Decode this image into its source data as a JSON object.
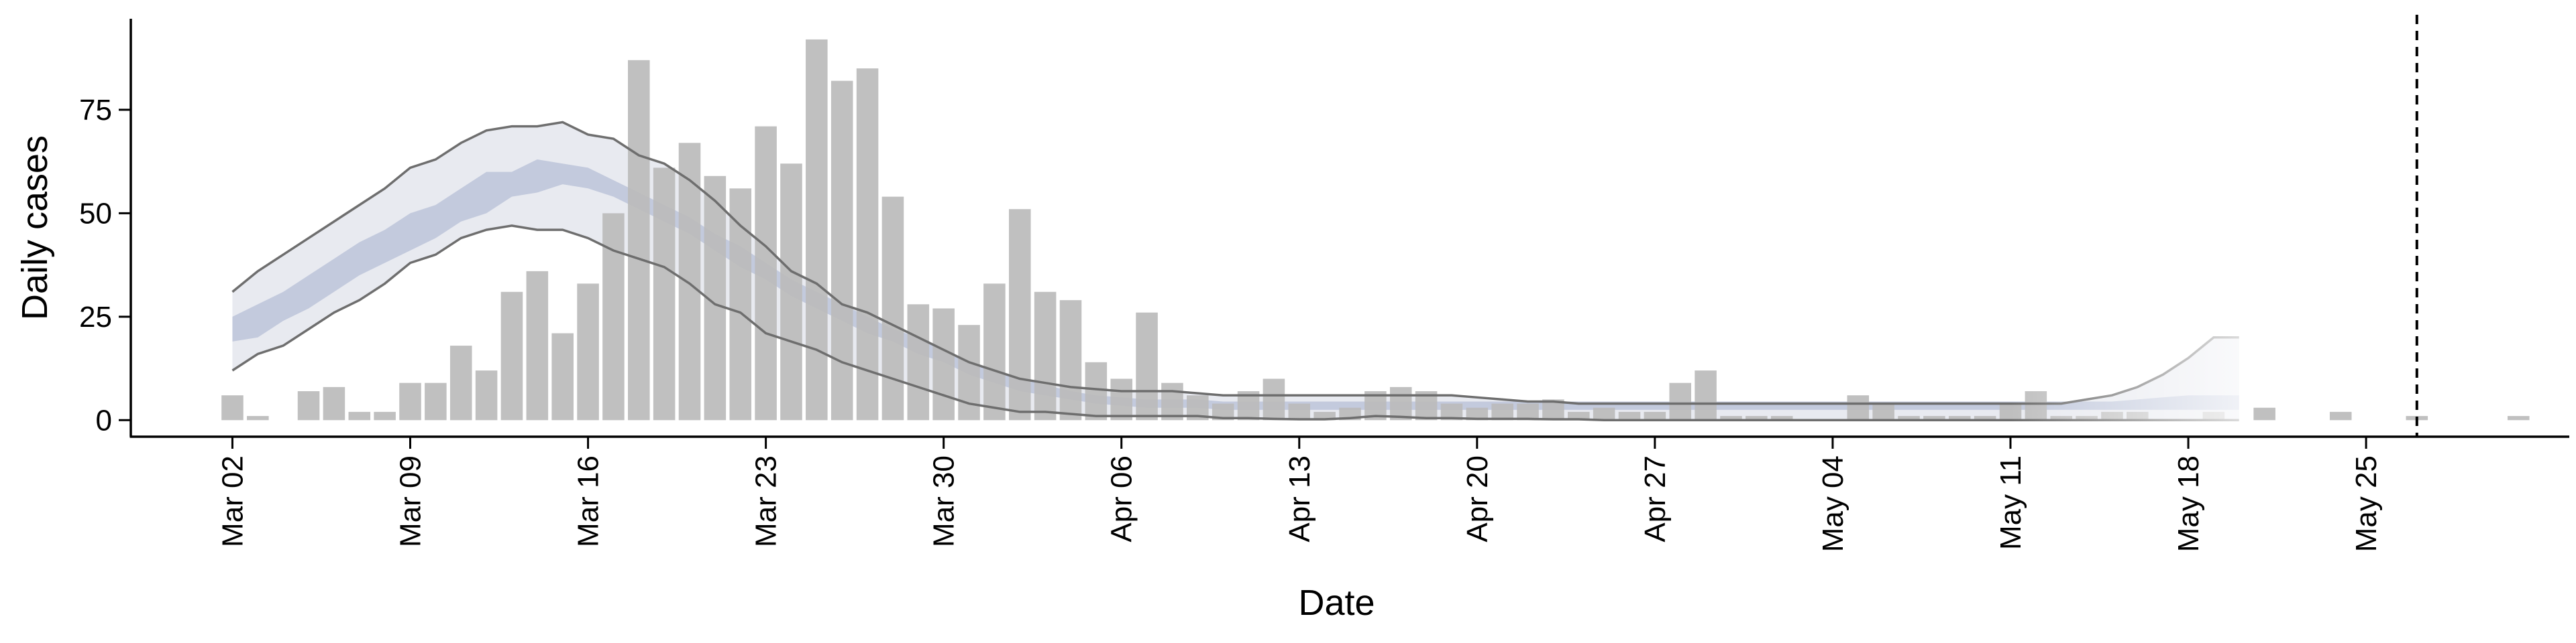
{
  "chart_data": {
    "type": "bar",
    "xlabel": "Date",
    "ylabel": "Daily cases",
    "ylim": [
      -4,
      97
    ],
    "yticks": [
      0,
      25,
      50,
      75
    ],
    "x_range": [
      "2020-02-27",
      "2020-06-02"
    ],
    "xticks": [
      {
        "date": "2020-03-02",
        "label": "Mar 02"
      },
      {
        "date": "2020-03-09",
        "label": "Mar 09"
      },
      {
        "date": "2020-03-16",
        "label": "Mar 16"
      },
      {
        "date": "2020-03-23",
        "label": "Mar 23"
      },
      {
        "date": "2020-03-30",
        "label": "Mar 30"
      },
      {
        "date": "2020-04-06",
        "label": "Apr 06"
      },
      {
        "date": "2020-04-13",
        "label": "Apr 13"
      },
      {
        "date": "2020-04-20",
        "label": "Apr 20"
      },
      {
        "date": "2020-04-27",
        "label": "Apr 27"
      },
      {
        "date": "2020-05-04",
        "label": "May 04"
      },
      {
        "date": "2020-05-11",
        "label": "May 11"
      },
      {
        "date": "2020-05-18",
        "label": "May 18"
      },
      {
        "date": "2020-05-25",
        "label": "May 25"
      }
    ],
    "vline": "2020-05-27",
    "bars": {
      "start_date": "2020-03-02",
      "values": [
        6,
        1,
        0,
        7,
        8,
        2,
        2,
        9,
        9,
        18,
        12,
        31,
        36,
        21,
        33,
        50,
        87,
        61,
        67,
        59,
        56,
        71,
        62,
        92,
        82,
        85,
        54,
        28,
        27,
        23,
        33,
        51,
        31,
        29,
        14,
        10,
        26,
        9,
        6,
        4,
        7,
        10,
        4,
        2,
        3,
        7,
        8,
        7,
        4,
        3,
        4,
        4,
        5,
        2,
        3,
        2,
        2,
        9,
        12,
        1,
        1,
        1,
        0,
        0,
        6,
        4,
        1,
        1,
        1,
        1,
        4,
        7,
        1,
        1,
        2,
        2,
        0,
        0,
        2,
        0,
        3,
        0,
        0,
        2,
        0,
        0,
        1,
        0,
        0,
        0,
        1
      ],
      "color": "#bbbbbb"
    },
    "band": {
      "start_date": "2020-03-02",
      "outer_lower": [
        12,
        16,
        18,
        22,
        26,
        29,
        33,
        38,
        40,
        44,
        46,
        47,
        46,
        46,
        44,
        41,
        39,
        37,
        33,
        28,
        26,
        21,
        19,
        17,
        14,
        12,
        10,
        8,
        6,
        4,
        3,
        2,
        2,
        1.5,
        1,
        1,
        1,
        1,
        1,
        0.5,
        0.5,
        0.3,
        0.2,
        0.2,
        0.5,
        1,
        0.8,
        0.5,
        0.5,
        0.3,
        0.3,
        0.3,
        0.2,
        0.2,
        0,
        0,
        0,
        0,
        0,
        0,
        0,
        0,
        0,
        0,
        0,
        0,
        0,
        0,
        0,
        0,
        0,
        0,
        0,
        0,
        0,
        0,
        0,
        0,
        0,
        0,
        0,
        0,
        0
      ],
      "outer_upper": [
        31,
        36,
        40,
        44,
        48,
        52,
        56,
        61,
        63,
        67,
        70,
        71,
        71,
        72,
        69,
        68,
        64,
        62,
        58,
        53,
        47,
        42,
        36,
        33,
        28,
        26,
        23,
        20,
        17,
        14,
        12,
        10,
        9,
        8,
        7.5,
        7,
        7,
        7,
        6.5,
        6,
        6,
        6,
        6,
        6,
        6,
        6,
        6,
        6,
        6,
        5.5,
        5,
        4.5,
        4.5,
        4,
        4,
        4,
        4,
        4,
        4,
        4,
        4,
        4,
        4,
        4,
        4,
        4,
        4,
        4,
        4,
        4,
        4,
        4,
        4,
        5,
        6,
        8,
        11,
        15,
        20,
        20,
        0,
        0,
        0
      ],
      "inner_lower": [
        19,
        20,
        24,
        27,
        31,
        35,
        38,
        41,
        44,
        48,
        50,
        54,
        55,
        57,
        56,
        54,
        51,
        48,
        45,
        41,
        37,
        34,
        30,
        27,
        24,
        21,
        19,
        16,
        14,
        11,
        9,
        7,
        6,
        5,
        4,
        3.5,
        3,
        3,
        3,
        2.5,
        2.5,
        2.5,
        2.5,
        2.5,
        2.5,
        2.5,
        2.5,
        2.5,
        2.5,
        2.5,
        2.5,
        2.5,
        2.5,
        2.5,
        2.5,
        2.5,
        2.5,
        2.5,
        2.5,
        2.5,
        2.5,
        2.5,
        2.5,
        2.5,
        2.5,
        2.5,
        2.5,
        2.5,
        2.5,
        2.5,
        2.5,
        2.5,
        2.5,
        2.5,
        2.5,
        2.5,
        2.5,
        2.5,
        2.5,
        2.5,
        0,
        0,
        0
      ],
      "inner_upper": [
        25,
        28,
        31,
        35,
        39,
        43,
        46,
        50,
        52,
        56,
        60,
        60,
        63,
        62,
        61,
        58,
        55,
        52,
        49,
        45,
        42,
        38,
        34,
        31,
        28,
        25,
        22,
        20,
        17,
        14,
        12,
        10,
        8.5,
        7,
        6,
        5.5,
        5,
        5,
        5,
        4.5,
        4.5,
        4.5,
        4.5,
        4.5,
        4.5,
        4.5,
        4.5,
        4.5,
        4.5,
        4.5,
        4.5,
        4.5,
        4.5,
        4.5,
        4.5,
        4.5,
        4.5,
        4.5,
        4.5,
        4.5,
        4.5,
        4.5,
        4.5,
        4.5,
        4.5,
        4.5,
        4.5,
        4.5,
        4.5,
        4.5,
        4.5,
        4.5,
        4.5,
        4.5,
        4.5,
        5,
        5.5,
        6,
        6,
        6,
        0,
        0,
        0
      ],
      "days": 80,
      "outer_color": "#e8eaf0",
      "inner_color": "#c3cadd",
      "line_color": "#6e6e6e"
    }
  }
}
